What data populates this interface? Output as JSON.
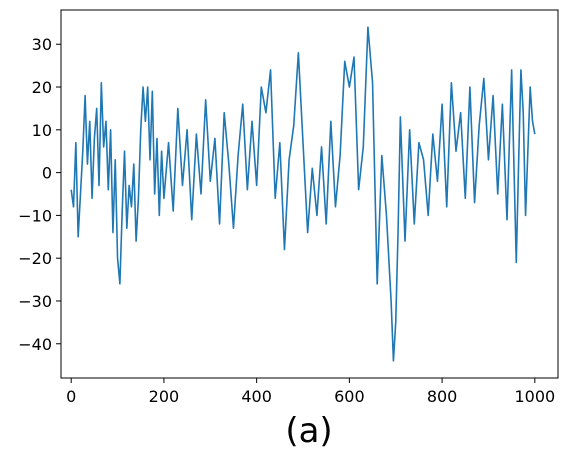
{
  "chart_data": {
    "type": "line",
    "title": "",
    "xlabel": "(a)",
    "ylabel": "",
    "xlim": [
      -22,
      1050
    ],
    "ylim": [
      -48,
      38
    ],
    "x_ticks": [
      0,
      200,
      400,
      600,
      800,
      1000
    ],
    "x_tick_labels": [
      "0",
      "200",
      "400",
      "600",
      "800",
      "1000"
    ],
    "y_ticks": [
      30,
      20,
      10,
      0,
      -10,
      -20,
      -30,
      -40
    ],
    "y_tick_labels": [
      "30",
      "20",
      "10",
      "0",
      "−10",
      "−20",
      "−30",
      "−40"
    ],
    "grid": false,
    "legend": "none",
    "series": [
      {
        "color": "#1f77b4",
        "x": [
          0,
          5,
          10,
          15,
          20,
          25,
          30,
          35,
          40,
          45,
          50,
          55,
          60,
          65,
          70,
          75,
          80,
          85,
          90,
          95,
          100,
          105,
          110,
          115,
          120,
          125,
          130,
          135,
          140,
          145,
          150,
          155,
          160,
          165,
          170,
          175,
          180,
          185,
          190,
          195,
          200,
          210,
          220,
          230,
          240,
          250,
          260,
          270,
          280,
          290,
          300,
          310,
          320,
          330,
          340,
          350,
          360,
          370,
          380,
          390,
          400,
          410,
          420,
          430,
          440,
          450,
          460,
          470,
          480,
          490,
          500,
          510,
          520,
          530,
          540,
          550,
          560,
          570,
          580,
          590,
          600,
          610,
          620,
          630,
          640,
          650,
          660,
          670,
          680,
          690,
          695,
          700,
          705,
          710,
          720,
          730,
          740,
          750,
          760,
          770,
          780,
          790,
          800,
          810,
          820,
          830,
          840,
          850,
          860,
          870,
          880,
          890,
          900,
          910,
          920,
          930,
          940,
          950,
          960,
          965,
          970,
          975,
          980,
          985,
          990,
          995,
          1000
        ],
        "y": [
          -4,
          -8,
          7,
          -15,
          -5,
          5,
          18,
          2,
          12,
          -6,
          8,
          15,
          -3,
          21,
          6,
          12,
          -4,
          10,
          -14,
          3,
          -20,
          -26,
          -9,
          5,
          -13,
          -3,
          -8,
          2,
          -16,
          -6,
          10,
          20,
          12,
          20,
          3,
          19,
          -5,
          8,
          -10,
          5,
          -6,
          7,
          -9,
          15,
          -3,
          10,
          -11,
          9,
          -5,
          17,
          -2,
          8,
          -12,
          14,
          2,
          -13,
          4,
          16,
          -4,
          12,
          -3,
          20,
          14,
          24,
          -6,
          7,
          -18,
          3,
          11,
          28,
          7,
          -14,
          1,
          -10,
          6,
          -12,
          12,
          -8,
          4,
          26,
          20,
          27,
          -4,
          6,
          34,
          21,
          -26,
          4,
          -10,
          -30,
          -44,
          -35,
          -14,
          13,
          -16,
          10,
          -12,
          7,
          3,
          -10,
          9,
          -2,
          16,
          -8,
          21,
          5,
          14,
          -6,
          20,
          -7,
          11,
          22,
          3,
          18,
          -5,
          16,
          -11,
          24,
          -21,
          2,
          24,
          14,
          -10,
          5,
          20,
          12,
          9
        ]
      }
    ]
  }
}
